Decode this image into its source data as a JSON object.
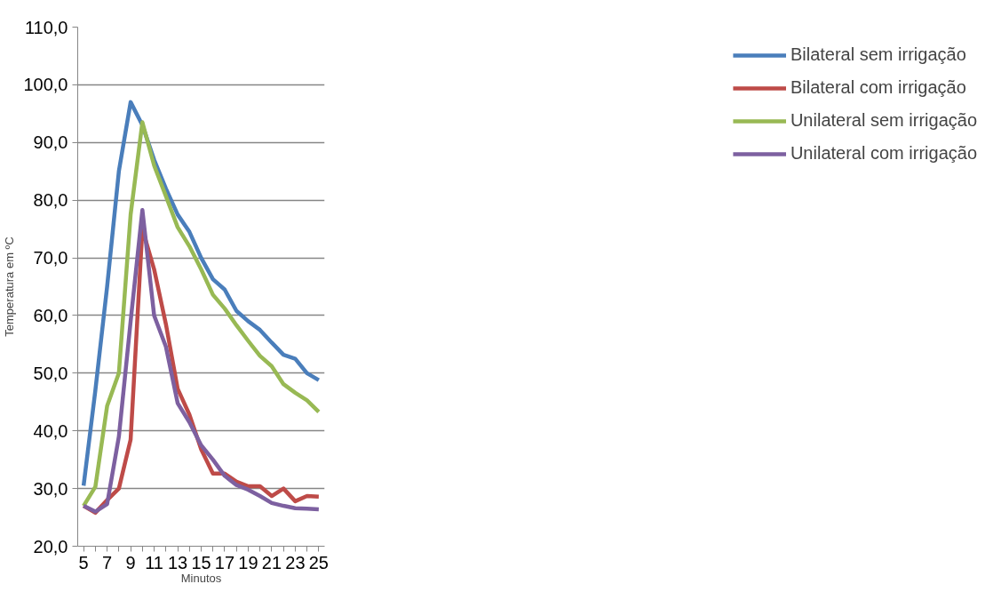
{
  "chart_data": {
    "type": "line",
    "xlabel": "Minutos",
    "ylabel": "Temperatura em ºC",
    "x": [
      5,
      6,
      7,
      8,
      9,
      10,
      11,
      12,
      13,
      14,
      15,
      16,
      17,
      18,
      19,
      20,
      21,
      22,
      23,
      24,
      25
    ],
    "xlim": [
      4.5,
      25.5
    ],
    "xticks": [
      5,
      {
        "value": 6,
        "label": null
      },
      7,
      {
        "value": 8,
        "label": null
      },
      9,
      {
        "value": 10,
        "label": null
      },
      11,
      {
        "value": 12,
        "label": null
      },
      13,
      {
        "value": 14,
        "label": null
      },
      15,
      {
        "value": 16,
        "label": null
      },
      17,
      {
        "value": 18,
        "label": null
      },
      19,
      {
        "value": 20,
        "label": null
      },
      21,
      {
        "value": 22,
        "label": null
      },
      23,
      {
        "value": 24,
        "label": null
      },
      25
    ],
    "ylim": [
      20,
      110
    ],
    "yticks": [
      {
        "value": 20,
        "label": "20,0"
      },
      {
        "value": 30,
        "label": "30,0"
      },
      {
        "value": 40,
        "label": "40,0"
      },
      {
        "value": 50,
        "label": "50,0"
      },
      {
        "value": 60,
        "label": "60,0"
      },
      {
        "value": 70,
        "label": "70,0"
      },
      {
        "value": 80,
        "label": "80,0"
      },
      {
        "value": 90,
        "label": "90,0"
      },
      {
        "value": 100,
        "label": "100,0"
      },
      {
        "value": 110,
        "label": "110,0"
      }
    ],
    "grid": "y",
    "legend": "right",
    "marker": "none",
    "line_style": "solid",
    "series": [
      {
        "name": "Bilateral sem irrigação",
        "color": "#4a7ebb",
        "values": [
          30.5,
          47,
          65,
          85,
          97,
          93,
          87,
          82,
          77.5,
          74.5,
          70,
          66.3,
          64.5,
          60.8,
          59,
          57.5,
          55.3,
          53.2,
          52.5,
          50,
          48.8
        ]
      },
      {
        "name": "Bilateral com irrigação",
        "color": "#be4b48",
        "values": [
          27,
          25.8,
          28,
          30,
          38.5,
          75,
          68,
          58.5,
          47.3,
          42.8,
          36.8,
          32.6,
          32.6,
          31.2,
          30.4,
          30.4,
          28.7,
          30,
          27.8,
          28.7,
          28.6
        ]
      },
      {
        "name": "Unilateral sem irrigação",
        "color": "#98b954",
        "values": [
          27,
          30.3,
          44.3,
          50,
          77.5,
          93.5,
          86,
          80.7,
          75.3,
          72,
          68,
          63.6,
          61.2,
          58.3,
          55.6,
          53,
          51.2,
          48.1,
          46.6,
          45.3,
          43.3
        ]
      },
      {
        "name": "Unilateral com irrigação",
        "color": "#7d60a0",
        "values": [
          27,
          26,
          27.3,
          39,
          59,
          78.3,
          60,
          54.6,
          44.8,
          41.5,
          37.5,
          35,
          32.2,
          30.6,
          29.8,
          28.7,
          27.5,
          27,
          26.6,
          26.5,
          26.4
        ]
      }
    ]
  }
}
